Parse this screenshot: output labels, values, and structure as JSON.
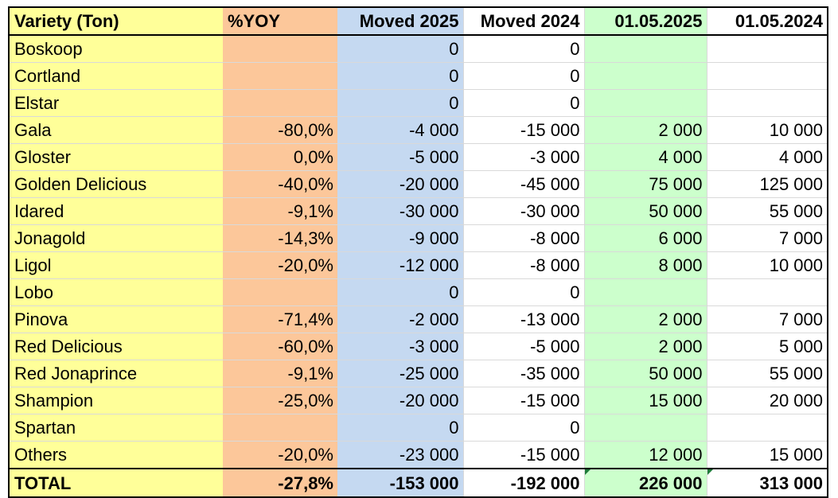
{
  "headers": [
    "Variety (Ton)",
    "%YOY",
    "Moved 2025",
    "Moved 2024",
    "01.05.2025",
    "01.05.2024"
  ],
  "rows": [
    [
      "Boskoop",
      "",
      "0",
      "0",
      "",
      ""
    ],
    [
      "Cortland",
      "",
      "0",
      "0",
      "",
      ""
    ],
    [
      "Elstar",
      "",
      "0",
      "0",
      "",
      ""
    ],
    [
      "Gala",
      "-80,0%",
      "-4 000",
      "-15 000",
      "2 000",
      "10 000"
    ],
    [
      "Gloster",
      "0,0%",
      "-5 000",
      "-3 000",
      "4 000",
      "4 000"
    ],
    [
      "Golden Delicious",
      "-40,0%",
      "-20 000",
      "-45 000",
      "75 000",
      "125 000"
    ],
    [
      "Idared",
      "-9,1%",
      "-30 000",
      "-30 000",
      "50 000",
      "55 000"
    ],
    [
      "Jonagold",
      "-14,3%",
      "-9 000",
      "-8 000",
      "6 000",
      "7 000"
    ],
    [
      "Ligol",
      "-20,0%",
      "-12 000",
      "-8 000",
      "8 000",
      "10 000"
    ],
    [
      "Lobo",
      "",
      "0",
      "0",
      "",
      ""
    ],
    [
      "Pinova",
      "-71,4%",
      "-2 000",
      "-13 000",
      "2 000",
      "7 000"
    ],
    [
      "Red Delicious",
      "-60,0%",
      "-3 000",
      "-5 000",
      "2 000",
      "5 000"
    ],
    [
      "Red Jonaprince",
      "-9,1%",
      "-25 000",
      "-35 000",
      "50 000",
      "55 000"
    ],
    [
      "Shampion",
      "-25,0%",
      "-20 000",
      "-15 000",
      "15 000",
      "20 000"
    ],
    [
      "Spartan",
      "",
      "0",
      "0",
      "",
      ""
    ],
    [
      "Others",
      "-20,0%",
      "-23 000",
      "-15 000",
      "12 000",
      "15 000"
    ]
  ],
  "total": [
    "TOTAL",
    "-27,8%",
    "-153 000",
    "-192 000",
    "226 000",
    "313 000"
  ],
  "colors": {
    "variety_column": "#ffff99",
    "yoy_column": "#fcc79a",
    "moved2025_column": "#c5d9f1",
    "stock2025_column": "#ccffcc"
  }
}
